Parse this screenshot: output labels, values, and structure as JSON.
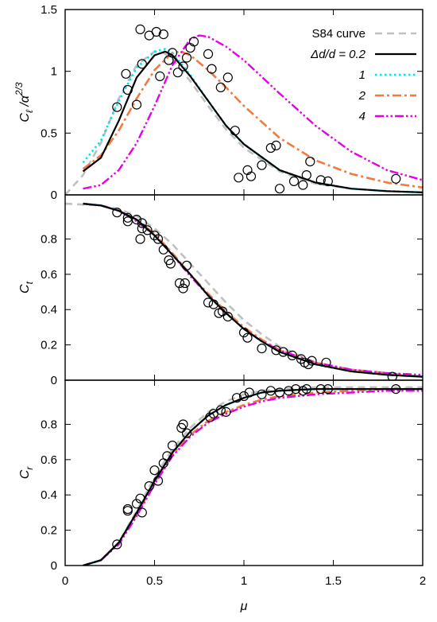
{
  "colors": {
    "s84": "#c0c0c0",
    "d02": "#000000",
    "d1": "#00e5ee",
    "d2": "#f07a40",
    "d4": "#e600e6"
  },
  "chart_data": [
    {
      "type": "line",
      "panel": "top",
      "ylabel_main": "C",
      "ylabel_sub": "ℓ",
      "ylabel_tail": " /α",
      "ylabel_sup": "2/3",
      "xlim": [
        0,
        2
      ],
      "ylim": [
        0,
        1.5
      ],
      "yticks": [
        0,
        0.5,
        1,
        1.5
      ],
      "ytick_labels": [
        "0",
        "0.5",
        "1",
        "1.5"
      ],
      "legend_position": "top-right",
      "legend": [
        {
          "key": "s84",
          "label": "S84 curve",
          "italic": false
        },
        {
          "key": "d02",
          "label": "Δd/d = 0.2",
          "italic": true
        },
        {
          "key": "d1",
          "label": "1",
          "italic": true
        },
        {
          "key": "d2",
          "label": "2",
          "italic": true
        },
        {
          "key": "d4",
          "label": "4",
          "italic": true
        }
      ],
      "series": [
        {
          "key": "s84",
          "x": [
            0,
            0.1,
            0.2,
            0.3,
            0.4,
            0.5,
            0.55,
            0.6,
            0.7,
            0.8,
            0.9,
            1.0,
            1.2,
            1.4,
            1.6,
            1.8,
            2.0
          ],
          "y": [
            0,
            0.16,
            0.42,
            0.78,
            1.05,
            1.16,
            1.15,
            1.1,
            0.92,
            0.72,
            0.53,
            0.38,
            0.19,
            0.09,
            0.05,
            0.03,
            0.02
          ]
        },
        {
          "key": "d02",
          "x": [
            0.1,
            0.2,
            0.3,
            0.4,
            0.5,
            0.56,
            0.6,
            0.7,
            0.8,
            0.9,
            1.0,
            1.2,
            1.4,
            1.6,
            1.8,
            2.0
          ],
          "y": [
            0.19,
            0.3,
            0.6,
            0.95,
            1.13,
            1.16,
            1.13,
            0.96,
            0.76,
            0.56,
            0.41,
            0.2,
            0.1,
            0.05,
            0.03,
            0.02
          ]
        },
        {
          "key": "d1",
          "x": [
            0.1,
            0.2,
            0.3,
            0.4,
            0.5,
            0.56,
            0.6,
            0.7,
            0.8,
            0.9,
            1.0,
            1.2,
            1.4,
            1.6,
            1.8,
            2.0
          ],
          "y": [
            0.26,
            0.44,
            0.76,
            1.03,
            1.16,
            1.18,
            1.15,
            0.97,
            0.76,
            0.56,
            0.41,
            0.2,
            0.1,
            0.05,
            0.03,
            0.02
          ]
        },
        {
          "key": "d2",
          "x": [
            0.1,
            0.2,
            0.3,
            0.4,
            0.5,
            0.6,
            0.65,
            0.7,
            0.8,
            0.9,
            1.0,
            1.2,
            1.4,
            1.6,
            1.8,
            2.0
          ],
          "y": [
            0.21,
            0.32,
            0.52,
            0.78,
            1.01,
            1.15,
            1.16,
            1.13,
            1.01,
            0.87,
            0.72,
            0.46,
            0.28,
            0.17,
            0.1,
            0.06
          ]
        },
        {
          "key": "d4",
          "x": [
            0.1,
            0.2,
            0.3,
            0.4,
            0.5,
            0.6,
            0.7,
            0.75,
            0.8,
            0.9,
            1.0,
            1.2,
            1.4,
            1.6,
            1.8,
            2.0
          ],
          "y": [
            0.05,
            0.08,
            0.2,
            0.42,
            0.72,
            1.05,
            1.26,
            1.29,
            1.28,
            1.2,
            1.09,
            0.82,
            0.56,
            0.35,
            0.2,
            0.12
          ]
        }
      ],
      "points": [
        [
          0.42,
          1.34
        ],
        [
          0.47,
          1.29
        ],
        [
          0.51,
          1.32
        ],
        [
          0.55,
          1.3
        ],
        [
          0.29,
          0.71
        ],
        [
          0.34,
          0.98
        ],
        [
          0.35,
          0.85
        ],
        [
          0.4,
          0.73
        ],
        [
          0.43,
          1.06
        ],
        [
          0.53,
          0.96
        ],
        [
          0.58,
          1.09
        ],
        [
          0.6,
          1.15
        ],
        [
          0.63,
          0.99
        ],
        [
          0.66,
          1.04
        ],
        [
          0.68,
          1.11
        ],
        [
          0.7,
          1.19
        ],
        [
          0.72,
          1.24
        ],
        [
          0.8,
          1.14
        ],
        [
          0.82,
          1.02
        ],
        [
          0.87,
          0.87
        ],
        [
          0.91,
          0.95
        ],
        [
          0.95,
          0.52
        ],
        [
          0.97,
          0.14
        ],
        [
          1.02,
          0.2
        ],
        [
          1.04,
          0.15
        ],
        [
          1.1,
          0.24
        ],
        [
          1.15,
          0.38
        ],
        [
          1.18,
          0.4
        ],
        [
          1.2,
          0.05
        ],
        [
          1.28,
          0.11
        ],
        [
          1.33,
          0.08
        ],
        [
          1.35,
          0.16
        ],
        [
          1.37,
          0.27
        ],
        [
          1.43,
          0.12
        ],
        [
          1.47,
          0.11
        ],
        [
          1.85,
          0.13
        ]
      ]
    },
    {
      "type": "line",
      "panel": "middle",
      "ylabel_main": "C",
      "ylabel_sub": "t",
      "xlim": [
        0,
        2
      ],
      "ylim": [
        0,
        1.05
      ],
      "yticks": [
        0,
        0.2,
        0.4,
        0.6,
        0.8
      ],
      "ytick_labels": [
        "0",
        "0.2",
        "0.4",
        "0.6",
        "0.8"
      ],
      "series": [
        {
          "key": "s84",
          "x": [
            0,
            0.2,
            0.3,
            0.4,
            0.5,
            0.6,
            0.7,
            0.8,
            0.9,
            1.0,
            1.1,
            1.2,
            1.4,
            1.6,
            1.8,
            2.0
          ],
          "y": [
            1.0,
            0.99,
            0.97,
            0.93,
            0.86,
            0.77,
            0.66,
            0.55,
            0.44,
            0.34,
            0.26,
            0.19,
            0.1,
            0.05,
            0.03,
            0.02
          ]
        },
        {
          "key": "d02",
          "x": [
            0.1,
            0.2,
            0.3,
            0.4,
            0.5,
            0.6,
            0.7,
            0.8,
            0.9,
            1.0,
            1.1,
            1.2,
            1.4,
            1.6,
            1.8,
            2.0
          ],
          "y": [
            1.0,
            0.99,
            0.96,
            0.91,
            0.82,
            0.71,
            0.6,
            0.48,
            0.38,
            0.29,
            0.22,
            0.16,
            0.09,
            0.05,
            0.03,
            0.02
          ]
        },
        {
          "key": "d1",
          "x": [
            0.1,
            0.2,
            0.3,
            0.4,
            0.5,
            0.6,
            0.7,
            0.8,
            0.9,
            1.0,
            1.1,
            1.2,
            1.4,
            1.6,
            1.8,
            2.0
          ],
          "y": [
            1.0,
            0.99,
            0.96,
            0.91,
            0.82,
            0.71,
            0.6,
            0.48,
            0.38,
            0.29,
            0.22,
            0.16,
            0.09,
            0.05,
            0.03,
            0.02
          ]
        },
        {
          "key": "d2",
          "x": [
            0.1,
            0.2,
            0.3,
            0.4,
            0.5,
            0.6,
            0.7,
            0.8,
            0.9,
            1.0,
            1.1,
            1.2,
            1.4,
            1.6,
            1.8,
            2.0
          ],
          "y": [
            1.0,
            0.99,
            0.96,
            0.91,
            0.83,
            0.72,
            0.6,
            0.49,
            0.39,
            0.3,
            0.23,
            0.17,
            0.1,
            0.06,
            0.04,
            0.02
          ]
        },
        {
          "key": "d4",
          "x": [
            0.1,
            0.2,
            0.3,
            0.4,
            0.5,
            0.6,
            0.7,
            0.8,
            0.9,
            1.0,
            1.1,
            1.2,
            1.4,
            1.6,
            1.8,
            2.0
          ],
          "y": [
            1.0,
            0.99,
            0.96,
            0.9,
            0.82,
            0.71,
            0.59,
            0.48,
            0.38,
            0.29,
            0.22,
            0.17,
            0.1,
            0.06,
            0.04,
            0.03
          ]
        }
      ],
      "points": [
        [
          0.29,
          0.95
        ],
        [
          0.35,
          0.9
        ],
        [
          0.35,
          0.92
        ],
        [
          0.4,
          0.91
        ],
        [
          0.42,
          0.8
        ],
        [
          0.43,
          0.86
        ],
        [
          0.43,
          0.89
        ],
        [
          0.46,
          0.85
        ],
        [
          0.5,
          0.82
        ],
        [
          0.52,
          0.8
        ],
        [
          0.55,
          0.74
        ],
        [
          0.58,
          0.68
        ],
        [
          0.59,
          0.66
        ],
        [
          0.64,
          0.55
        ],
        [
          0.66,
          0.52
        ],
        [
          0.67,
          0.55
        ],
        [
          0.68,
          0.65
        ],
        [
          0.8,
          0.44
        ],
        [
          0.83,
          0.43
        ],
        [
          0.86,
          0.38
        ],
        [
          0.88,
          0.39
        ],
        [
          0.91,
          0.36
        ],
        [
          1.0,
          0.27
        ],
        [
          1.02,
          0.24
        ],
        [
          1.1,
          0.18
        ],
        [
          1.18,
          0.17
        ],
        [
          1.22,
          0.16
        ],
        [
          1.27,
          0.14
        ],
        [
          1.32,
          0.12
        ],
        [
          1.34,
          0.1
        ],
        [
          1.36,
          0.09
        ],
        [
          1.38,
          0.11
        ],
        [
          1.46,
          0.1
        ],
        [
          1.83,
          0.02
        ]
      ]
    },
    {
      "type": "line",
      "panel": "bottom",
      "ylabel_main": "C",
      "ylabel_sub": "r",
      "xlabel": "μ",
      "xlim": [
        0,
        2
      ],
      "ylim": [
        0,
        1.05
      ],
      "xticks": [
        0,
        0.5,
        1,
        1.5,
        2
      ],
      "xtick_labels": [
        "0",
        "0.5",
        "1",
        "1.5",
        "2"
      ],
      "yticks": [
        0,
        0.2,
        0.4,
        0.6,
        0.8
      ],
      "ytick_labels": [
        "0",
        "0.2",
        "0.4",
        "0.6",
        "0.8"
      ],
      "series": [
        {
          "key": "s84",
          "x": [
            0.1,
            0.2,
            0.3,
            0.4,
            0.5,
            0.6,
            0.7,
            0.8,
            0.9,
            1.0,
            1.1,
            1.2,
            1.4,
            1.6,
            1.8,
            2.0
          ],
          "y": [
            0.0,
            0.03,
            0.13,
            0.31,
            0.5,
            0.66,
            0.78,
            0.87,
            0.93,
            0.97,
            0.99,
            1.0,
            1.01,
            1.01,
            1.01,
            1.01
          ]
        },
        {
          "key": "d02",
          "x": [
            0.1,
            0.2,
            0.3,
            0.4,
            0.5,
            0.6,
            0.7,
            0.8,
            0.9,
            1.0,
            1.1,
            1.2,
            1.4,
            1.6,
            1.8,
            2.0
          ],
          "y": [
            0.0,
            0.03,
            0.13,
            0.3,
            0.48,
            0.64,
            0.76,
            0.85,
            0.91,
            0.95,
            0.98,
            0.99,
            1.0,
            1.0,
            1.0,
            1.0
          ]
        },
        {
          "key": "d1",
          "x": [
            0.1,
            0.2,
            0.3,
            0.4,
            0.5,
            0.6,
            0.7,
            0.8,
            0.9,
            1.0,
            1.1,
            1.2,
            1.4,
            1.6,
            1.8,
            2.0
          ],
          "y": [
            0.0,
            0.03,
            0.13,
            0.3,
            0.48,
            0.64,
            0.76,
            0.85,
            0.91,
            0.95,
            0.98,
            0.99,
            1.0,
            1.0,
            1.0,
            1.0
          ]
        },
        {
          "key": "d2",
          "x": [
            0.1,
            0.2,
            0.3,
            0.4,
            0.5,
            0.6,
            0.7,
            0.8,
            0.9,
            1.0,
            1.1,
            1.2,
            1.4,
            1.6,
            1.8,
            2.0
          ],
          "y": [
            0.0,
            0.03,
            0.13,
            0.29,
            0.47,
            0.63,
            0.74,
            0.82,
            0.87,
            0.91,
            0.94,
            0.96,
            0.98,
            0.99,
            1.0,
            1.0
          ]
        },
        {
          "key": "d4",
          "x": [
            0.1,
            0.2,
            0.3,
            0.4,
            0.5,
            0.6,
            0.7,
            0.8,
            0.9,
            1.0,
            1.1,
            1.2,
            1.4,
            1.6,
            1.8,
            2.0
          ],
          "y": [
            0.0,
            0.03,
            0.12,
            0.28,
            0.46,
            0.62,
            0.73,
            0.81,
            0.86,
            0.9,
            0.93,
            0.95,
            0.97,
            0.98,
            0.99,
            0.99
          ]
        }
      ],
      "points": [
        [
          0.29,
          0.12
        ],
        [
          0.35,
          0.31
        ],
        [
          0.35,
          0.32
        ],
        [
          0.4,
          0.35
        ],
        [
          0.42,
          0.38
        ],
        [
          0.43,
          0.3
        ],
        [
          0.47,
          0.45
        ],
        [
          0.5,
          0.54
        ],
        [
          0.52,
          0.48
        ],
        [
          0.55,
          0.58
        ],
        [
          0.57,
          0.62
        ],
        [
          0.6,
          0.68
        ],
        [
          0.65,
          0.78
        ],
        [
          0.66,
          0.8
        ],
        [
          0.68,
          0.75
        ],
        [
          0.81,
          0.84
        ],
        [
          0.83,
          0.86
        ],
        [
          0.87,
          0.88
        ],
        [
          0.9,
          0.87
        ],
        [
          0.96,
          0.95
        ],
        [
          1.0,
          0.96
        ],
        [
          1.03,
          0.98
        ],
        [
          1.1,
          0.97
        ],
        [
          1.15,
          0.99
        ],
        [
          1.2,
          0.98
        ],
        [
          1.25,
          0.99
        ],
        [
          1.29,
          1.0
        ],
        [
          1.33,
          0.99
        ],
        [
          1.35,
          1.0
        ],
        [
          1.43,
          1.0
        ],
        [
          1.47,
          1.0
        ],
        [
          1.85,
          1.0
        ]
      ]
    }
  ]
}
